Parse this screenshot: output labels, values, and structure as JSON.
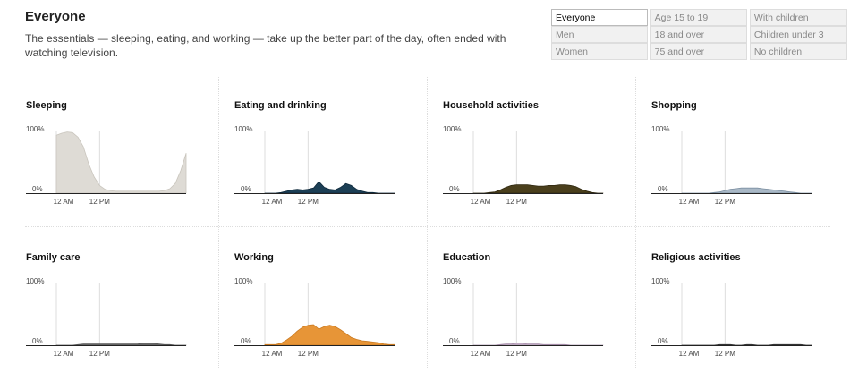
{
  "header": {
    "title": "Everyone",
    "description": "The essentials — sleeping, eating, and working — take up the better part of the day, often ended with watching television."
  },
  "filters": [
    [
      "Everyone",
      "Age 15 to 19",
      "With children"
    ],
    [
      "Men",
      "18 and over",
      "Children under 3"
    ],
    [
      "Women",
      "75 and over",
      "No children"
    ]
  ],
  "selected_filter": "Everyone",
  "chart_data": [
    {
      "type": "area",
      "title": "Sleeping",
      "color": "#dedbd5",
      "stroke": "#c9c5bd",
      "ytick_labels": [
        "100%",
        "0%"
      ],
      "xtick_labels": [
        "12 AM",
        "12 PM"
      ],
      "ylim": [
        0,
        100
      ],
      "x": [
        4,
        5,
        6,
        7,
        8,
        9,
        10,
        11,
        12,
        13,
        14,
        15,
        16,
        17,
        18,
        19,
        20,
        21,
        22,
        23,
        24,
        25,
        26,
        27,
        28
      ],
      "values": [
        90,
        93,
        95,
        94,
        87,
        72,
        45,
        25,
        12,
        6,
        4,
        3,
        3,
        3,
        3,
        3,
        3,
        3,
        3,
        3,
        4,
        7,
        15,
        35,
        62
      ]
    },
    {
      "type": "area",
      "title": "Eating and drinking",
      "color": "#1c3f55",
      "stroke": "#0f2a3c",
      "ytick_labels": [
        "100%",
        "0%"
      ],
      "xtick_labels": [
        "12 AM",
        "12 PM"
      ],
      "ylim": [
        0,
        100
      ],
      "x": [
        4,
        5,
        6,
        7,
        8,
        9,
        10,
        11,
        12,
        13,
        14,
        15,
        16,
        17,
        18,
        19,
        20,
        21,
        22,
        23,
        24,
        25,
        26,
        27,
        28
      ],
      "values": [
        0,
        0,
        0,
        1,
        3,
        5,
        6,
        5,
        6,
        8,
        18,
        9,
        6,
        5,
        9,
        15,
        12,
        6,
        3,
        1,
        1,
        0,
        0,
        0,
        0
      ]
    },
    {
      "type": "area",
      "title": "Household activities",
      "color": "#4a3f1c",
      "stroke": "#2e270f",
      "ytick_labels": [
        "100%",
        "0%"
      ],
      "xtick_labels": [
        "12 AM",
        "12 PM"
      ],
      "ylim": [
        0,
        100
      ],
      "x": [
        4,
        5,
        6,
        7,
        8,
        9,
        10,
        11,
        12,
        13,
        14,
        15,
        16,
        17,
        18,
        19,
        20,
        21,
        22,
        23,
        24,
        25,
        26,
        27,
        28
      ],
      "values": [
        0,
        0,
        0,
        1,
        2,
        5,
        9,
        12,
        13,
        13,
        13,
        12,
        11,
        11,
        12,
        12,
        13,
        13,
        12,
        10,
        6,
        3,
        1,
        0,
        0
      ]
    },
    {
      "type": "area",
      "title": "Shopping",
      "color": "#a9b8c6",
      "stroke": "#7d90a2",
      "ytick_labels": [
        "100%",
        "0%"
      ],
      "xtick_labels": [
        "12 AM",
        "12 PM"
      ],
      "ylim": [
        0,
        100
      ],
      "x": [
        4,
        5,
        6,
        7,
        8,
        9,
        10,
        11,
        12,
        13,
        14,
        15,
        16,
        17,
        18,
        19,
        20,
        21,
        22,
        23,
        24,
        25,
        26,
        27,
        28
      ],
      "values": [
        0,
        0,
        0,
        0,
        0,
        0,
        1,
        2,
        4,
        6,
        7,
        8,
        8,
        8,
        8,
        7,
        6,
        5,
        4,
        3,
        2,
        1,
        0,
        0,
        0
      ]
    },
    {
      "type": "area",
      "title": "Family care",
      "color": "#6e6e6e",
      "stroke": "#555555",
      "ytick_labels": [
        "100%",
        "0%"
      ],
      "xtick_labels": [
        "12 AM",
        "12 PM"
      ],
      "ylim": [
        0,
        100
      ],
      "x": [
        4,
        5,
        6,
        7,
        8,
        9,
        10,
        11,
        12,
        13,
        14,
        15,
        16,
        17,
        18,
        19,
        20,
        21,
        22,
        23,
        24,
        25,
        26,
        27,
        28
      ],
      "values": [
        0,
        0,
        0,
        0,
        1,
        2,
        2,
        2,
        2,
        2,
        2,
        2,
        2,
        2,
        2,
        2,
        3,
        3,
        3,
        2,
        1,
        1,
        0,
        0,
        0
      ]
    },
    {
      "type": "area",
      "title": "Working",
      "color": "#e79537",
      "stroke": "#c97a22",
      "ytick_labels": [
        "100%",
        "0%"
      ],
      "xtick_labels": [
        "12 AM",
        "12 PM"
      ],
      "ylim": [
        0,
        100
      ],
      "x": [
        4,
        5,
        6,
        7,
        8,
        9,
        10,
        11,
        12,
        13,
        14,
        15,
        16,
        17,
        18,
        19,
        20,
        21,
        22,
        23,
        24,
        25,
        26,
        27,
        28
      ],
      "values": [
        1,
        1,
        1,
        3,
        8,
        14,
        22,
        28,
        31,
        32,
        25,
        29,
        31,
        29,
        24,
        18,
        12,
        9,
        7,
        6,
        5,
        4,
        2,
        1,
        1
      ]
    },
    {
      "type": "area",
      "title": "Education",
      "color": "#c9b5cc",
      "stroke": "#a48ca8",
      "ytick_labels": [
        "100%",
        "0%"
      ],
      "xtick_labels": [
        "12 AM",
        "12 PM"
      ],
      "ylim": [
        0,
        100
      ],
      "x": [
        4,
        5,
        6,
        7,
        8,
        9,
        10,
        11,
        12,
        13,
        14,
        15,
        16,
        17,
        18,
        19,
        20,
        21,
        22,
        23,
        24,
        25,
        26,
        27,
        28
      ],
      "values": [
        0,
        0,
        0,
        0,
        0,
        1,
        2,
        2,
        3,
        3,
        2,
        2,
        2,
        1,
        1,
        1,
        1,
        1,
        0,
        0,
        0,
        0,
        0,
        0,
        0
      ]
    },
    {
      "type": "area",
      "title": "Religious activities",
      "color": "#555555",
      "stroke": "#333333",
      "ytick_labels": [
        "100%",
        "0%"
      ],
      "xtick_labels": [
        "12 AM",
        "12 PM"
      ],
      "ylim": [
        0,
        100
      ],
      "x": [
        4,
        5,
        6,
        7,
        8,
        9,
        10,
        11,
        12,
        13,
        14,
        15,
        16,
        17,
        18,
        19,
        20,
        21,
        22,
        23,
        24,
        25,
        26,
        27,
        28
      ],
      "values": [
        0,
        0,
        0,
        0,
        0,
        0,
        0,
        1,
        1,
        1,
        0,
        0,
        1,
        1,
        0,
        0,
        0,
        1,
        1,
        1,
        1,
        1,
        1,
        0,
        0
      ]
    }
  ]
}
